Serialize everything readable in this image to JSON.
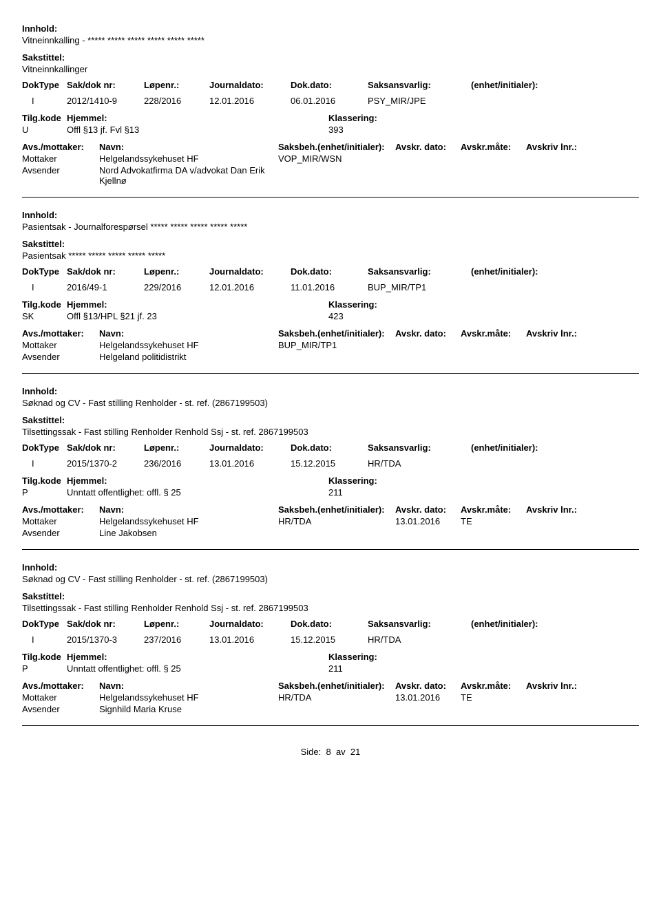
{
  "labels": {
    "innhold": "Innhold:",
    "sakstittel": "Sakstittel:",
    "doktype": "DokType",
    "saknr": "Sak/dok nr:",
    "lopenr": "Løpenr.:",
    "journaldato": "Journaldato:",
    "dokdato": "Dok.dato:",
    "saksansvarlig": "Saksansvarlig:",
    "enhet": "(enhet/initialer):",
    "tilgkode": "Tilg.kode",
    "hjemmel": "Hjemmel:",
    "klassering": "Klassering:",
    "avsmottaker": "Avs./mottaker:",
    "navn": "Navn:",
    "saksbeh": "Saksbeh.(enhet/initialer):",
    "avskrdato": "Avskr. dato:",
    "avskrmate": "Avskr.måte:",
    "avskrlnr": "Avskriv lnr.:",
    "mottaker": "Mottaker",
    "avsender": "Avsender"
  },
  "entries": [
    {
      "innhold": "Vitneinnkalling -  *****  ***** ***** ***** ***** *****",
      "sakstittel": "Vitneinnkallinger",
      "doktype": "I",
      "saknr": "2012/1410-9",
      "lopenr": "228/2016",
      "journaldato": "12.01.2016",
      "dokdato": "06.01.2016",
      "saksansvarlig": "PSY_MIR/JPE",
      "enhet": "",
      "tilgkode": "U",
      "hjemmel": "Offl §13 jf. Fvl §13",
      "klassering": "393",
      "parties": [
        {
          "role": "Mottaker",
          "navn": "Helgelandssykehuset HF",
          "saksbeh": "VOP_MIR/WSN",
          "avskrdato": "",
          "avskrmate": "",
          "avskrlnr": ""
        },
        {
          "role": "Avsender",
          "navn": "Nord Advokatfirma DA v/advokat Dan Erik Kjellnø",
          "saksbeh": "",
          "avskrdato": "",
          "avskrmate": "",
          "avskrlnr": ""
        }
      ]
    },
    {
      "innhold": "Pasientsak  - Journalforespørsel ***** ***** ***** ***** *****",
      "sakstittel": "Pasientsak ***** ***** ***** ***** *****",
      "doktype": "I",
      "saknr": "2016/49-1",
      "lopenr": "229/2016",
      "journaldato": "12.01.2016",
      "dokdato": "11.01.2016",
      "saksansvarlig": "BUP_MIR/TP1",
      "enhet": "",
      "tilgkode": "SK",
      "hjemmel": "Offl §13/HPL §21 jf. 23",
      "klassering": "423",
      "parties": [
        {
          "role": "Mottaker",
          "navn": "Helgelandssykehuset HF",
          "saksbeh": "BUP_MIR/TP1",
          "avskrdato": "",
          "avskrmate": "",
          "avskrlnr": ""
        },
        {
          "role": "Avsender",
          "navn": "Helgeland politidistrikt",
          "saksbeh": "",
          "avskrdato": "",
          "avskrmate": "",
          "avskrlnr": ""
        }
      ]
    },
    {
      "innhold": "Søknad og CV - Fast stilling Renholder - st. ref. (2867199503)",
      "sakstittel": "Tilsettingssak - Fast stilling Renholder Renhold Ssj - st. ref. 2867199503",
      "doktype": "I",
      "saknr": "2015/1370-2",
      "lopenr": "236/2016",
      "journaldato": "13.01.2016",
      "dokdato": "15.12.2015",
      "saksansvarlig": "HR/TDA",
      "enhet": "",
      "tilgkode": "P",
      "hjemmel": "Unntatt offentlighet: offl. § 25",
      "klassering": "211",
      "parties": [
        {
          "role": "Mottaker",
          "navn": "Helgelandssykehuset HF",
          "saksbeh": "HR/TDA",
          "avskrdato": "13.01.2016",
          "avskrmate": "TE",
          "avskrlnr": ""
        },
        {
          "role": "Avsender",
          "navn": "Line Jakobsen",
          "saksbeh": "",
          "avskrdato": "",
          "avskrmate": "",
          "avskrlnr": ""
        }
      ]
    },
    {
      "innhold": "Søknad og CV - Fast stilling Renholder - st. ref. (2867199503)",
      "sakstittel": "Tilsettingssak - Fast stilling Renholder Renhold Ssj - st. ref. 2867199503",
      "doktype": "I",
      "saknr": "2015/1370-3",
      "lopenr": "237/2016",
      "journaldato": "13.01.2016",
      "dokdato": "15.12.2015",
      "saksansvarlig": "HR/TDA",
      "enhet": "",
      "tilgkode": "P",
      "hjemmel": "Unntatt offentlighet: offl. § 25",
      "klassering": "211",
      "parties": [
        {
          "role": "Mottaker",
          "navn": "Helgelandssykehuset HF",
          "saksbeh": "HR/TDA",
          "avskrdato": "13.01.2016",
          "avskrmate": "TE",
          "avskrlnr": ""
        },
        {
          "role": "Avsender",
          "navn": "Signhild Maria Kruse",
          "saksbeh": "",
          "avskrdato": "",
          "avskrmate": "",
          "avskrlnr": ""
        }
      ]
    }
  ],
  "footer": {
    "prefix": "Side:",
    "page": "8",
    "sep": "av",
    "total": "21"
  }
}
